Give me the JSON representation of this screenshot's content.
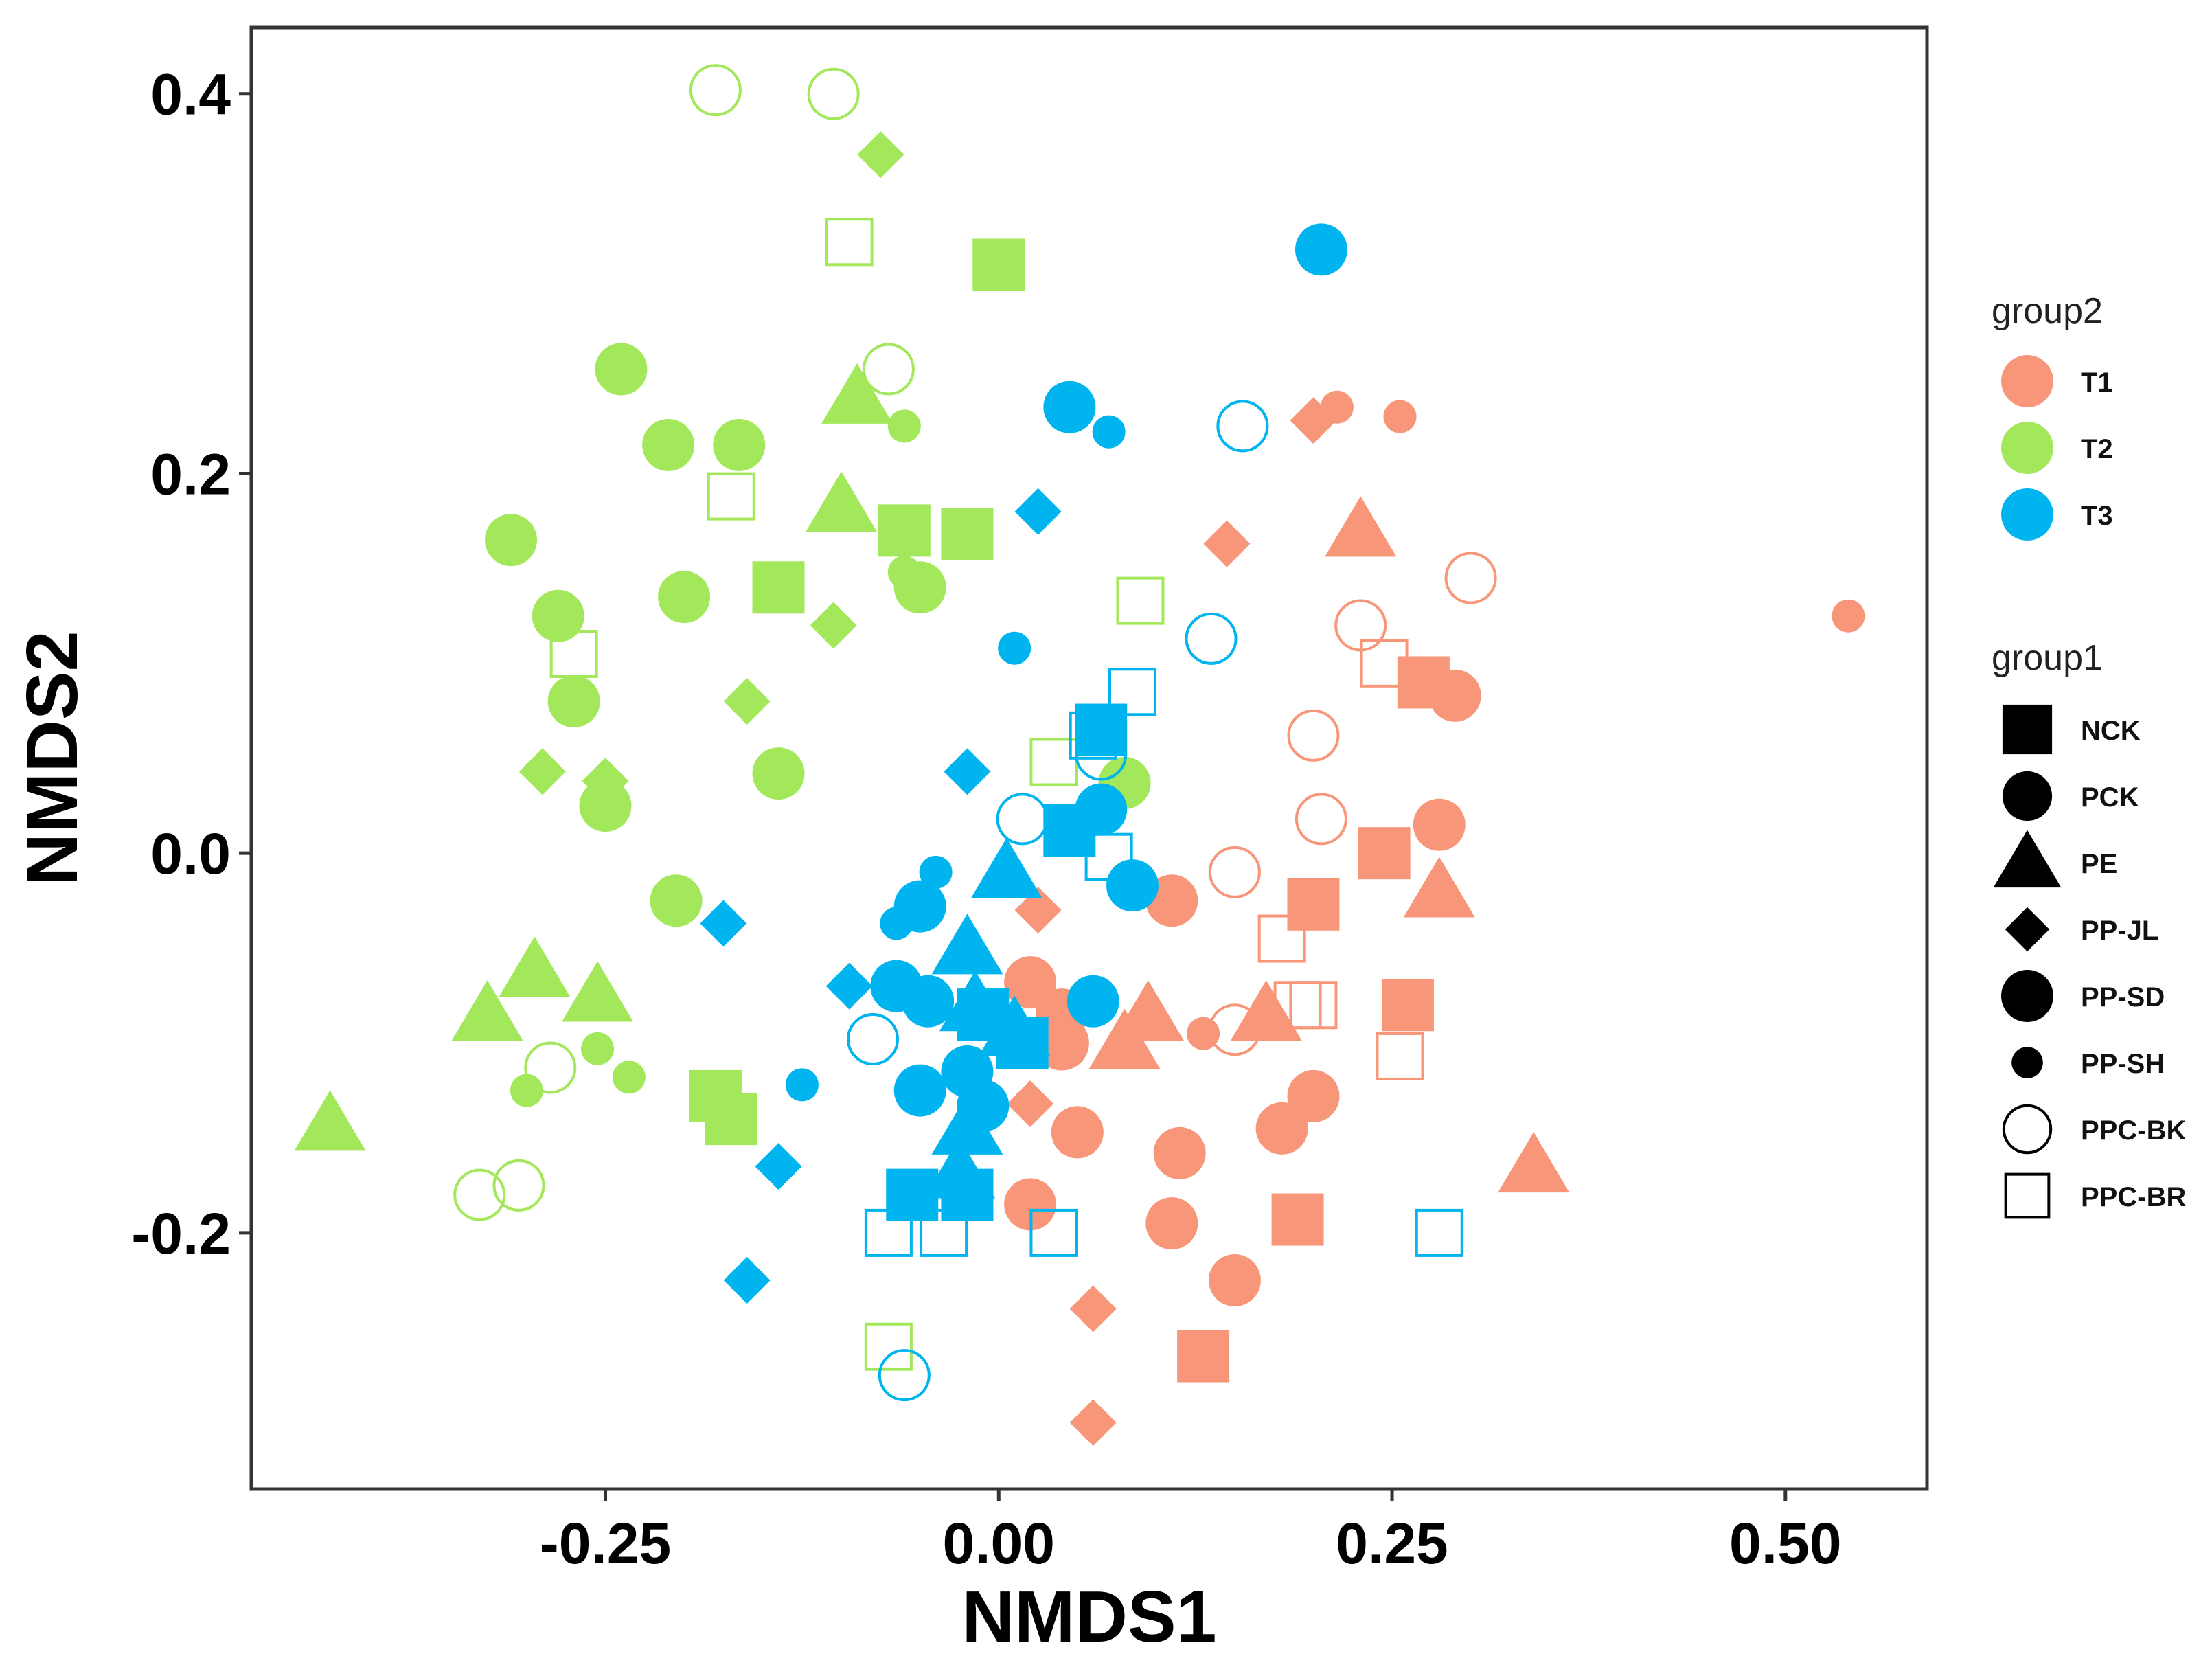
{
  "chart_data": {
    "type": "scatter",
    "title": "",
    "xlabel": "NMDS1",
    "ylabel": "NMDS2",
    "xlim": [
      -0.475,
      0.59
    ],
    "ylim": [
      -0.335,
      0.435
    ],
    "x_ticks": [
      -0.25,
      0.0,
      0.25,
      0.5
    ],
    "x_tick_labels": [
      "-0.25",
      "0.00",
      "0.25",
      "0.50"
    ],
    "y_ticks": [
      -0.2,
      0.0,
      0.2,
      0.4
    ],
    "y_tick_labels": [
      "-0.2",
      "0.0",
      "0.2",
      "0.4"
    ],
    "grid": false,
    "legend_position": "right",
    "legend_color": {
      "title": "group2",
      "entries": [
        {
          "label": "T1",
          "color": "#F8967A"
        },
        {
          "label": "T2",
          "color": "#A3E85A"
        },
        {
          "label": "T3",
          "color": "#00B4F0"
        }
      ]
    },
    "legend_shape": {
      "title": "group1",
      "entries": [
        {
          "label": "NCK",
          "shape": "square"
        },
        {
          "label": "PCK",
          "shape": "circle"
        },
        {
          "label": "PE",
          "shape": "triangle"
        },
        {
          "label": "PP-JL",
          "shape": "diamond"
        },
        {
          "label": "PP-SD",
          "shape": "circle-large"
        },
        {
          "label": "PP-SH",
          "shape": "circle-small"
        },
        {
          "label": "PPC-BK",
          "shape": "open-circle"
        },
        {
          "label": "PPC-BR",
          "shape": "open-square"
        }
      ]
    },
    "series": [
      {
        "name": "T1",
        "color": "#F8967A",
        "points": [
          {
            "g": "NCK",
            "x": 0.27,
            "y": 0.09
          },
          {
            "g": "NCK",
            "x": 0.245,
            "y": 0.0
          },
          {
            "g": "NCK",
            "x": 0.2,
            "y": -0.027
          },
          {
            "g": "NCK",
            "x": 0.26,
            "y": -0.08
          },
          {
            "g": "NCK",
            "x": 0.19,
            "y": -0.193
          },
          {
            "g": "NCK",
            "x": 0.13,
            "y": -0.265
          },
          {
            "g": "PCK",
            "x": 0.29,
            "y": 0.083
          },
          {
            "g": "PCK",
            "x": 0.28,
            "y": 0.015
          },
          {
            "g": "PCK",
            "x": 0.11,
            "y": -0.025
          },
          {
            "g": "PCK",
            "x": 0.2,
            "y": -0.128
          },
          {
            "g": "PCK",
            "x": 0.18,
            "y": -0.145
          },
          {
            "g": "PCK",
            "x": 0.05,
            "y": -0.147
          },
          {
            "g": "PCK",
            "x": 0.115,
            "y": -0.158
          },
          {
            "g": "PCK",
            "x": 0.02,
            "y": -0.185
          },
          {
            "g": "PCK",
            "x": 0.11,
            "y": -0.195
          },
          {
            "g": "PCK",
            "x": 0.15,
            "y": -0.225
          },
          {
            "g": "PCK",
            "x": 0.02,
            "y": -0.068
          },
          {
            "g": "PCK",
            "x": 0.04,
            "y": -0.085
          },
          {
            "g": "PE",
            "x": 0.23,
            "y": 0.17
          },
          {
            "g": "PE",
            "x": 0.28,
            "y": -0.02
          },
          {
            "g": "PE",
            "x": 0.095,
            "y": -0.085
          },
          {
            "g": "PE",
            "x": 0.08,
            "y": -0.1
          },
          {
            "g": "PE",
            "x": 0.17,
            "y": -0.085
          },
          {
            "g": "PE",
            "x": 0.34,
            "y": -0.165
          },
          {
            "g": "PP-JL",
            "x": 0.2,
            "y": 0.228
          },
          {
            "g": "PP-JL",
            "x": 0.145,
            "y": 0.163
          },
          {
            "g": "PP-JL",
            "x": 0.025,
            "y": -0.03
          },
          {
            "g": "PP-JL",
            "x": 0.02,
            "y": -0.132
          },
          {
            "g": "PP-JL",
            "x": 0.06,
            "y": -0.24
          },
          {
            "g": "PP-JL",
            "x": 0.06,
            "y": -0.3
          },
          {
            "g": "PP-SD",
            "x": 0.04,
            "y": -0.1
          },
          {
            "g": "PP-SH",
            "x": 0.215,
            "y": 0.235
          },
          {
            "g": "PP-SH",
            "x": 0.255,
            "y": 0.23
          },
          {
            "g": "PP-SH",
            "x": 0.54,
            "y": 0.125
          },
          {
            "g": "PP-SH",
            "x": 0.13,
            "y": -0.095
          },
          {
            "g": "PPC-BK",
            "x": 0.3,
            "y": 0.145
          },
          {
            "g": "PPC-BK",
            "x": 0.23,
            "y": 0.12
          },
          {
            "g": "PPC-BK",
            "x": 0.2,
            "y": 0.062
          },
          {
            "g": "PPC-BK",
            "x": 0.205,
            "y": 0.018
          },
          {
            "g": "PPC-BK",
            "x": 0.15,
            "y": -0.01
          },
          {
            "g": "PPC-BK",
            "x": 0.15,
            "y": -0.093
          },
          {
            "g": "PPC-BR",
            "x": 0.245,
            "y": 0.1
          },
          {
            "g": "PPC-BR",
            "x": 0.18,
            "y": -0.045
          },
          {
            "g": "PPC-BR",
            "x": 0.19,
            "y": -0.08
          },
          {
            "g": "PPC-BR",
            "x": 0.2,
            "y": -0.08
          },
          {
            "g": "PPC-BR",
            "x": 0.255,
            "y": -0.107
          }
        ]
      },
      {
        "name": "T2",
        "color": "#A3E85A",
        "points": [
          {
            "g": "NCK",
            "x": 0.0,
            "y": 0.31
          },
          {
            "g": "NCK",
            "x": -0.06,
            "y": 0.17
          },
          {
            "g": "NCK",
            "x": -0.02,
            "y": 0.168
          },
          {
            "g": "NCK",
            "x": -0.14,
            "y": 0.14
          },
          {
            "g": "NCK",
            "x": -0.18,
            "y": -0.128
          },
          {
            "g": "NCK",
            "x": -0.17,
            "y": -0.14
          },
          {
            "g": "PCK",
            "x": -0.24,
            "y": 0.255
          },
          {
            "g": "PCK",
            "x": -0.21,
            "y": 0.215
          },
          {
            "g": "PCK",
            "x": -0.165,
            "y": 0.215
          },
          {
            "g": "PCK",
            "x": -0.31,
            "y": 0.165
          },
          {
            "g": "PCK",
            "x": -0.28,
            "y": 0.125
          },
          {
            "g": "PCK",
            "x": -0.2,
            "y": 0.135
          },
          {
            "g": "PCK",
            "x": -0.05,
            "y": 0.14
          },
          {
            "g": "PCK",
            "x": -0.27,
            "y": 0.08
          },
          {
            "g": "PCK",
            "x": -0.14,
            "y": 0.042
          },
          {
            "g": "PCK",
            "x": -0.25,
            "y": 0.025
          },
          {
            "g": "PCK",
            "x": -0.205,
            "y": -0.025
          },
          {
            "g": "PCK",
            "x": 0.08,
            "y": 0.037
          },
          {
            "g": "PE",
            "x": -0.09,
            "y": 0.24
          },
          {
            "g": "PE",
            "x": -0.1,
            "y": 0.183
          },
          {
            "g": "PE",
            "x": -0.295,
            "y": -0.062
          },
          {
            "g": "PE",
            "x": -0.325,
            "y": -0.085
          },
          {
            "g": "PE",
            "x": -0.255,
            "y": -0.075
          },
          {
            "g": "PE",
            "x": -0.425,
            "y": -0.143
          },
          {
            "g": "PP-JL",
            "x": -0.075,
            "y": 0.368
          },
          {
            "g": "PP-JL",
            "x": -0.105,
            "y": 0.12
          },
          {
            "g": "PP-JL",
            "x": -0.16,
            "y": 0.08
          },
          {
            "g": "PP-JL",
            "x": -0.29,
            "y": 0.043
          },
          {
            "g": "PP-JL",
            "x": -0.25,
            "y": 0.038
          },
          {
            "g": "PP-SH",
            "x": -0.06,
            "y": 0.225
          },
          {
            "g": "PP-SH",
            "x": -0.06,
            "y": 0.148
          },
          {
            "g": "PP-SH",
            "x": -0.255,
            "y": -0.103
          },
          {
            "g": "PP-SH",
            "x": -0.235,
            "y": -0.118
          },
          {
            "g": "PP-SH",
            "x": -0.3,
            "y": -0.125
          },
          {
            "g": "PPC-BK",
            "x": -0.18,
            "y": 0.402
          },
          {
            "g": "PPC-BK",
            "x": -0.105,
            "y": 0.4
          },
          {
            "g": "PPC-BK",
            "x": -0.07,
            "y": 0.255
          },
          {
            "g": "PPC-BK",
            "x": -0.285,
            "y": -0.113
          },
          {
            "g": "PPC-BK",
            "x": -0.33,
            "y": -0.18
          },
          {
            "g": "PPC-BK",
            "x": -0.305,
            "y": -0.175
          },
          {
            "g": "PPC-BR",
            "x": -0.095,
            "y": 0.322
          },
          {
            "g": "PPC-BR",
            "x": -0.17,
            "y": 0.188
          },
          {
            "g": "PPC-BR",
            "x": -0.27,
            "y": 0.105
          },
          {
            "g": "PPC-BR",
            "x": 0.09,
            "y": 0.133
          },
          {
            "g": "PPC-BR",
            "x": 0.035,
            "y": 0.048
          },
          {
            "g": "PPC-BR",
            "x": -0.07,
            "y": -0.26
          }
        ]
      },
      {
        "name": "T3",
        "color": "#00B4F0",
        "points": [
          {
            "g": "NCK",
            "x": 0.045,
            "y": 0.012
          },
          {
            "g": "NCK",
            "x": 0.065,
            "y": 0.065
          },
          {
            "g": "NCK",
            "x": 0.015,
            "y": -0.1
          },
          {
            "g": "NCK",
            "x": -0.01,
            "y": -0.085
          },
          {
            "g": "NCK",
            "x": -0.055,
            "y": -0.18
          },
          {
            "g": "NCK",
            "x": -0.02,
            "y": -0.18
          },
          {
            "g": "PCK",
            "x": 0.205,
            "y": 0.318
          },
          {
            "g": "PCK",
            "x": 0.045,
            "y": 0.235
          },
          {
            "g": "PCK",
            "x": 0.065,
            "y": 0.023
          },
          {
            "g": "PCK",
            "x": 0.085,
            "y": -0.017
          },
          {
            "g": "PCK",
            "x": -0.05,
            "y": -0.028
          },
          {
            "g": "PCK",
            "x": -0.065,
            "y": -0.07
          },
          {
            "g": "PCK",
            "x": -0.045,
            "y": -0.078
          },
          {
            "g": "PCK",
            "x": 0.06,
            "y": -0.078
          },
          {
            "g": "PCK",
            "x": -0.02,
            "y": -0.115
          },
          {
            "g": "PCK",
            "x": -0.05,
            "y": -0.125
          },
          {
            "g": "PCK",
            "x": -0.01,
            "y": -0.133
          },
          {
            "g": "PE",
            "x": 0.005,
            "y": -0.01
          },
          {
            "g": "PE",
            "x": -0.02,
            "y": -0.05
          },
          {
            "g": "PE",
            "x": -0.015,
            "y": -0.08
          },
          {
            "g": "PE",
            "x": 0.01,
            "y": -0.093
          },
          {
            "g": "PE",
            "x": -0.02,
            "y": -0.145
          },
          {
            "g": "PE",
            "x": -0.025,
            "y": -0.168
          },
          {
            "g": "PP-JL",
            "x": 0.025,
            "y": 0.18
          },
          {
            "g": "PP-JL",
            "x": -0.02,
            "y": 0.043
          },
          {
            "g": "PP-JL",
            "x": -0.175,
            "y": -0.037
          },
          {
            "g": "PP-JL",
            "x": -0.095,
            "y": -0.07
          },
          {
            "g": "PP-JL",
            "x": -0.14,
            "y": -0.165
          },
          {
            "g": "PP-JL",
            "x": -0.16,
            "y": -0.225
          },
          {
            "g": "PP-SH",
            "x": 0.07,
            "y": 0.222
          },
          {
            "g": "PP-SH",
            "x": 0.01,
            "y": 0.108
          },
          {
            "g": "PP-SH",
            "x": -0.065,
            "y": -0.037
          },
          {
            "g": "PP-SH",
            "x": -0.04,
            "y": -0.01
          },
          {
            "g": "PP-SH",
            "x": -0.125,
            "y": -0.122
          },
          {
            "g": "PPC-BK",
            "x": 0.155,
            "y": 0.225
          },
          {
            "g": "PPC-BK",
            "x": 0.135,
            "y": 0.113
          },
          {
            "g": "PPC-BK",
            "x": 0.065,
            "y": 0.052
          },
          {
            "g": "PPC-BK",
            "x": 0.015,
            "y": 0.018
          },
          {
            "g": "PPC-BK",
            "x": -0.08,
            "y": -0.098
          },
          {
            "g": "PPC-BK",
            "x": -0.06,
            "y": -0.275
          },
          {
            "g": "PPC-BR",
            "x": 0.085,
            "y": 0.085
          },
          {
            "g": "PPC-BR",
            "x": 0.06,
            "y": 0.062
          },
          {
            "g": "PPC-BR",
            "x": 0.07,
            "y": -0.002
          },
          {
            "g": "PPC-BR",
            "x": -0.07,
            "y": -0.2
          },
          {
            "g": "PPC-BR",
            "x": -0.035,
            "y": -0.2
          },
          {
            "g": "PPC-BR",
            "x": 0.035,
            "y": -0.2
          },
          {
            "g": "PPC-BR",
            "x": 0.28,
            "y": -0.2
          }
        ]
      }
    ]
  }
}
